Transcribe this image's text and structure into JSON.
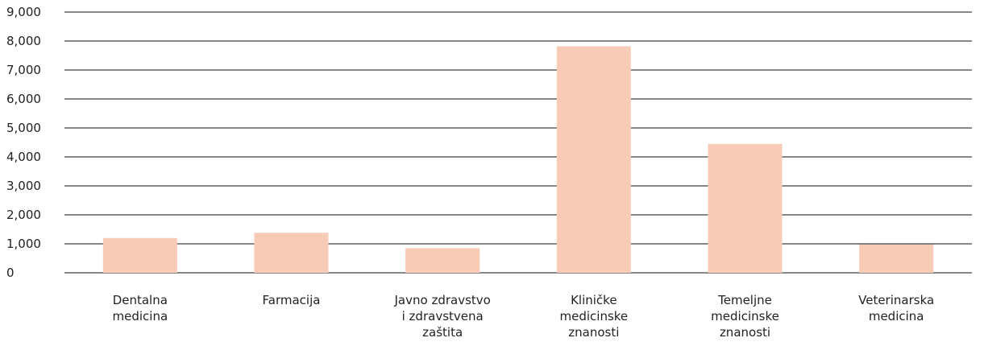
{
  "chart_data": {
    "type": "bar",
    "title": "",
    "xlabel": "",
    "ylabel": "",
    "ylim": [
      0,
      9000
    ],
    "yticks": [
      "0",
      "1,000",
      "2,000",
      "3,000",
      "4,000",
      "5,000",
      "6,000",
      "7,000",
      "8,000",
      "9,000"
    ],
    "grid": true,
    "categories": [
      [
        "Dentalna",
        "medicina"
      ],
      [
        "Farmacija"
      ],
      [
        "Javno zdravstvo",
        "i zdravstvena",
        "zaštita"
      ],
      [
        "Kliničke",
        "medicinske",
        "znanosti"
      ],
      [
        "Temeljne",
        "medicinske",
        "znanosti"
      ],
      [
        "Veterinarska",
        "medicina"
      ]
    ],
    "values": [
      1200,
      1380,
      850,
      7820,
      4450,
      980
    ],
    "colors": {
      "bar": "#f8cbb7",
      "grid": "#111111",
      "text": "#222222"
    }
  }
}
